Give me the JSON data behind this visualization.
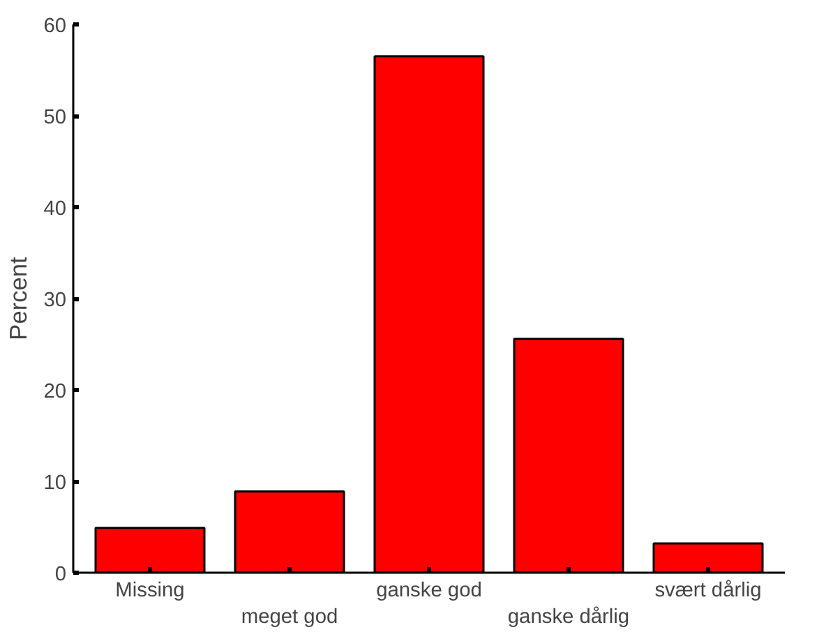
{
  "chart_data": {
    "type": "bar",
    "ylabel": "Percent",
    "categories": [
      "Missing",
      "meget god",
      "ganske god",
      "ganske dårlig",
      "svært dårlig"
    ],
    "values": [
      4.9,
      8.9,
      56.5,
      25.6,
      3.2
    ],
    "color": "#ff0000",
    "ylim": [
      0,
      60
    ],
    "yticks": [
      0,
      10,
      20,
      30,
      40,
      50,
      60
    ],
    "grid": false
  }
}
